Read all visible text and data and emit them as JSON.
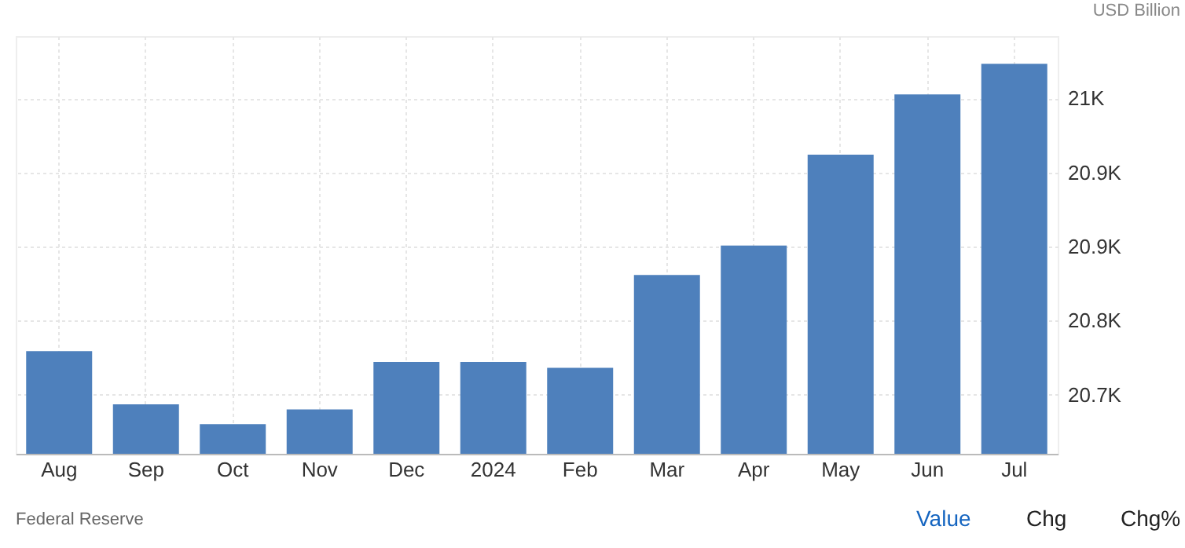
{
  "chart_data": {
    "type": "bar",
    "ylabel": "USD Billion",
    "categories": [
      "Aug",
      "Sep",
      "Oct",
      "Nov",
      "Dec",
      "2024",
      "Feb",
      "Mar",
      "Apr",
      "May",
      "Jun",
      "Jul"
    ],
    "values": [
      20744,
      20690,
      20670,
      20685,
      20733,
      20733,
      20727,
      20821,
      20851,
      20943,
      21004,
      21035
    ],
    "color": "#4e80bc",
    "ylim": [
      20640,
      21063
    ],
    "yticks": [
      {
        "value": 20700,
        "label": "20.7K"
      },
      {
        "value": 20775,
        "label": "20.8K"
      },
      {
        "value": 20850,
        "label": "20.9K"
      },
      {
        "value": 20925,
        "label": "20.9K"
      },
      {
        "value": 21000,
        "label": "21K"
      }
    ],
    "grid": true,
    "annotations": [
      "Federal Reserve",
      "Value",
      "Chg",
      "Chg%"
    ]
  }
}
